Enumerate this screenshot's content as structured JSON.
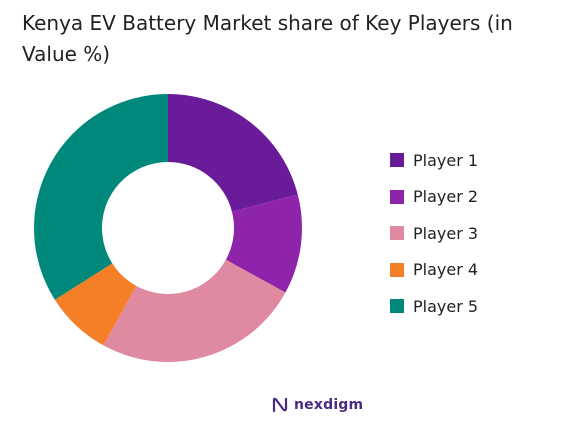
{
  "chart_data": {
    "type": "pie",
    "variant": "donut",
    "title": "Kenya EV Battery Market share of Key Players (in Value %)",
    "categories": [
      "Player 1",
      "Player 2",
      "Player 3",
      "Player 4",
      "Player 5"
    ],
    "values": [
      21,
      12,
      25,
      8,
      34
    ],
    "colors": [
      "#6a1b9a",
      "#8e24aa",
      "#e08aa2",
      "#f57f26",
      "#00897b"
    ],
    "legend_position": "right"
  },
  "brand": {
    "name": "nexdigm",
    "color": "#4b2a84",
    "icon": "nexdigm-logo-icon"
  }
}
